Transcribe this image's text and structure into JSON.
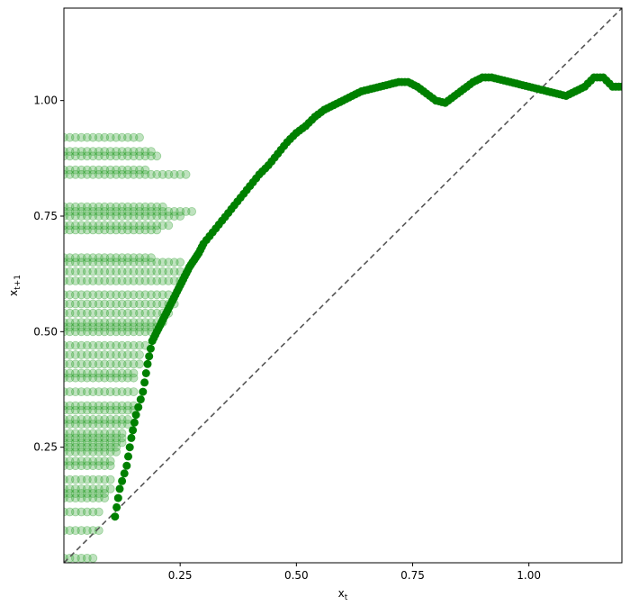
{
  "chart_data": {
    "type": "scatter",
    "xlabel_base": "x",
    "xlabel_sub": "t",
    "ylabel_base": "x",
    "ylabel_sub": "t+1",
    "xlim": [
      0.0,
      1.2
    ],
    "ylim": [
      0.0,
      1.2
    ],
    "xticks": [
      0.25,
      0.5,
      0.75,
      1.0
    ],
    "xtick_labels": [
      "0.25",
      "0.50",
      "0.75",
      "1.00"
    ],
    "yticks": [
      0.25,
      0.5,
      0.75,
      1.0
    ],
    "ytick_labels": [
      "0.25",
      "0.50",
      "0.75",
      "1.00"
    ],
    "grid": false,
    "colors": {
      "map_points": "#008000",
      "cloud_points": "#2ca02c",
      "identity_line": "#555555"
    },
    "identity_line": {
      "from": [
        0.0,
        0.0
      ],
      "to": [
        1.2,
        1.2
      ],
      "style": "dashed"
    },
    "series": [
      {
        "key": "map_curve",
        "x": [
          0.11,
          0.12,
          0.135,
          0.145,
          0.155,
          0.17,
          0.18,
          0.19,
          0.2,
          0.21,
          0.22,
          0.23,
          0.24,
          0.25,
          0.26,
          0.27,
          0.28,
          0.29,
          0.3,
          0.32,
          0.34,
          0.36,
          0.38,
          0.4,
          0.42,
          0.44,
          0.46,
          0.48,
          0.5,
          0.52,
          0.54,
          0.56,
          0.58,
          0.6,
          0.62,
          0.64,
          0.66,
          0.68,
          0.7,
          0.72,
          0.74,
          0.76,
          0.78,
          0.8,
          0.82,
          0.84,
          0.86,
          0.88,
          0.9,
          0.92,
          0.94,
          0.96,
          0.98,
          1.0,
          1.02,
          1.04,
          1.06,
          1.08,
          1.1,
          1.12,
          1.14,
          1.16,
          1.18,
          1.2
        ],
        "y": [
          0.1,
          0.16,
          0.21,
          0.27,
          0.32,
          0.37,
          0.43,
          0.48,
          0.5,
          0.52,
          0.54,
          0.56,
          0.58,
          0.6,
          0.62,
          0.64,
          0.655,
          0.67,
          0.69,
          0.715,
          0.74,
          0.765,
          0.79,
          0.815,
          0.84,
          0.86,
          0.885,
          0.91,
          0.93,
          0.945,
          0.965,
          0.98,
          0.99,
          1.0,
          1.01,
          1.02,
          1.025,
          1.03,
          1.035,
          1.04,
          1.04,
          1.03,
          1.015,
          1.0,
          0.995,
          1.01,
          1.025,
          1.04,
          1.05,
          1.05,
          1.045,
          1.04,
          1.035,
          1.03,
          1.025,
          1.02,
          1.015,
          1.01,
          1.02,
          1.03,
          1.05,
          1.05,
          1.03,
          1.03
        ]
      },
      {
        "key": "point_cloud",
        "y_levels": [
          0.92,
          0.89,
          0.88,
          0.85,
          0.84,
          0.77,
          0.76,
          0.75,
          0.73,
          0.72,
          0.66,
          0.65,
          0.63,
          0.61,
          0.58,
          0.56,
          0.54,
          0.52,
          0.51,
          0.5,
          0.47,
          0.45,
          0.43,
          0.41,
          0.4,
          0.37,
          0.34,
          0.33,
          0.31,
          0.3,
          0.28,
          0.27,
          0.26,
          0.25,
          0.24,
          0.22,
          0.21,
          0.18,
          0.16,
          0.15,
          0.14,
          0.11,
          0.07,
          0.01
        ],
        "x_max": [
          0.165,
          0.195,
          0.21,
          0.185,
          0.265,
          0.22,
          0.28,
          0.26,
          0.23,
          0.2,
          0.19,
          0.255,
          0.26,
          0.25,
          0.23,
          0.24,
          0.225,
          0.22,
          0.2,
          0.19,
          0.18,
          0.17,
          0.165,
          0.16,
          0.15,
          0.16,
          0.155,
          0.15,
          0.145,
          0.14,
          0.135,
          0.13,
          0.125,
          0.12,
          0.12,
          0.11,
          0.105,
          0.1,
          0.1,
          0.095,
          0.09,
          0.085,
          0.08,
          0.07
        ],
        "x_step": 0.0125
      }
    ]
  }
}
